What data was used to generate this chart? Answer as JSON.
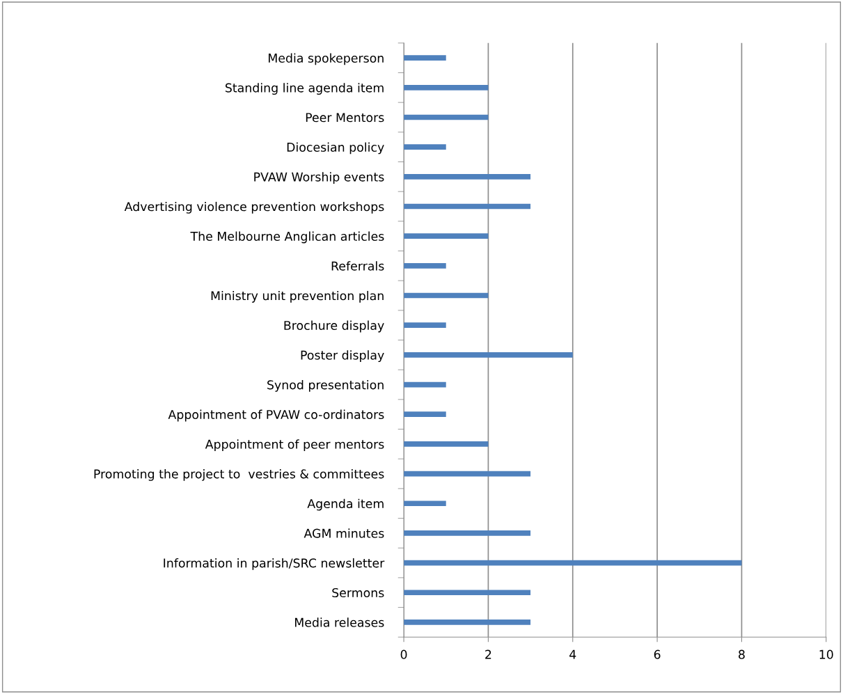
{
  "chart_data": {
    "type": "bar",
    "orientation": "horizontal",
    "categories": [
      "Media spokeperson",
      "Standing line agenda item",
      "Peer Mentors",
      "Diocesian policy",
      "PVAW Worship events",
      "Advertising violence prevention workshops",
      "The Melbourne Anglican articles",
      "Referrals",
      "Ministry unit prevention plan",
      "Brochure display",
      "Poster display",
      "Synod presentation",
      "Appointment of PVAW co-ordinators",
      "Appointment of peer mentors",
      "Promoting the project to  vestries & committees",
      "Agenda item",
      "AGM minutes",
      "Information in parish/SRC newsletter",
      "Sermons",
      "Media releases"
    ],
    "values": [
      1,
      2,
      2,
      1,
      3,
      3,
      2,
      1,
      2,
      1,
      4,
      1,
      1,
      2,
      3,
      1,
      3,
      8,
      3,
      3
    ],
    "color": "#4f81bd",
    "xlim": [
      0,
      10
    ],
    "xticks": [
      0,
      2,
      4,
      6,
      8,
      10
    ],
    "grid": "x"
  }
}
